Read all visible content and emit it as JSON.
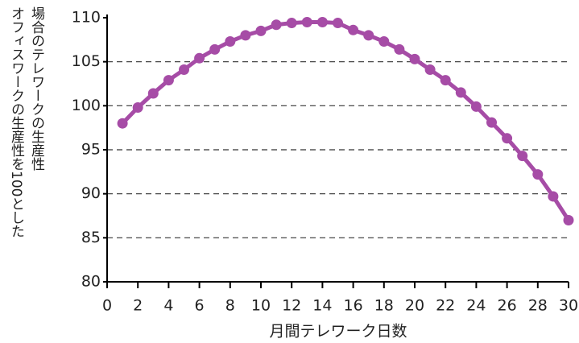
{
  "chart_data": {
    "type": "line",
    "ylabel": [
      "オフィスワークの生産性を100とした",
      "場合のテレワークの生産性"
    ],
    "xlabel": "月間テレワーク日数",
    "x": [
      1,
      2,
      3,
      4,
      5,
      6,
      7,
      8,
      9,
      10,
      11,
      12,
      13,
      14,
      15,
      16,
      17,
      18,
      19,
      20,
      21,
      22,
      23,
      24,
      25,
      26,
      27,
      28,
      29,
      30
    ],
    "series": [
      {
        "color": "#a64ca6",
        "values": [
          98.0,
          99.8,
          101.4,
          102.9,
          104.1,
          105.4,
          106.4,
          107.3,
          108.0,
          108.5,
          109.2,
          109.4,
          109.5,
          109.5,
          109.4,
          108.6,
          108.0,
          107.3,
          106.4,
          105.3,
          104.1,
          102.9,
          101.5,
          99.9,
          98.1,
          96.3,
          94.3,
          92.2,
          89.7,
          87.0
        ]
      }
    ],
    "xlim": [
      0,
      30
    ],
    "xticks": [
      0,
      2,
      4,
      6,
      8,
      10,
      12,
      14,
      16,
      18,
      20,
      22,
      24,
      26,
      28,
      30
    ],
    "ylim": [
      80,
      110
    ],
    "yticks": [
      80,
      85,
      90,
      95,
      100,
      105,
      110
    ],
    "grid": true
  }
}
